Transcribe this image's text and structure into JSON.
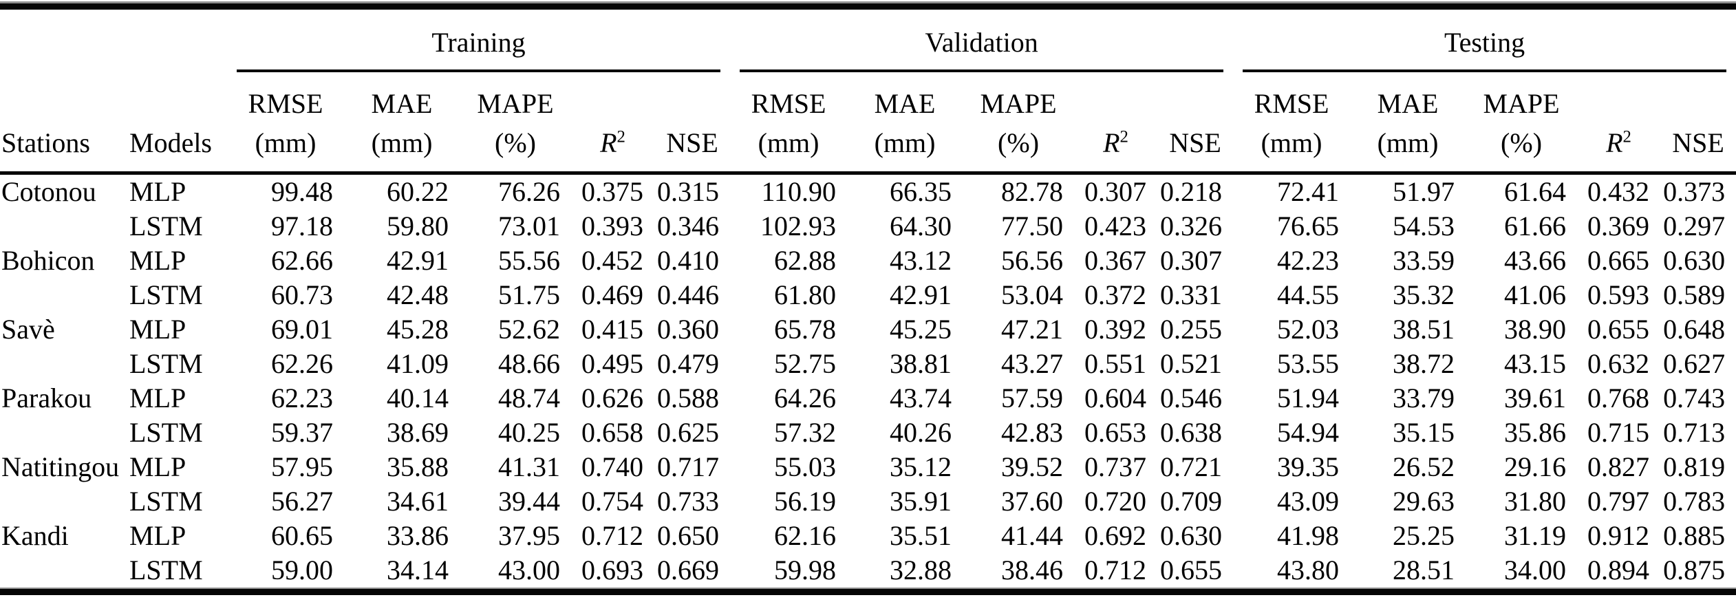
{
  "page": {
    "background": "#ffffff",
    "text_color": "#000000",
    "rule_color": "#050505"
  },
  "table": {
    "left_headers": [
      "Stations",
      "Models"
    ],
    "group_headers": [
      "Training",
      "Validation",
      "Testing"
    ],
    "metric_headers": [
      {
        "name": "rmse",
        "line1": "RMSE",
        "line2": "(mm)"
      },
      {
        "name": "mae",
        "line1": "MAE",
        "line2": "(mm)"
      },
      {
        "name": "mape",
        "line1": "MAPE",
        "line2": "(%)"
      },
      {
        "name": "r2",
        "line1": "R",
        "sup": "2"
      },
      {
        "name": "nse",
        "line1": "NSE"
      }
    ],
    "stations": [
      {
        "name": "Cotonou",
        "models": [
          {
            "name": "MLP",
            "training": [
              "99.48",
              "60.22",
              "76.26",
              "0.375",
              "0.315"
            ],
            "validation": [
              "110.90",
              "66.35",
              "82.78",
              "0.307",
              "0.218"
            ],
            "testing": [
              "72.41",
              "51.97",
              "61.64",
              "0.432",
              "0.373"
            ]
          },
          {
            "name": "LSTM",
            "training": [
              "97.18",
              "59.80",
              "73.01",
              "0.393",
              "0.346"
            ],
            "validation": [
              "102.93",
              "64.30",
              "77.50",
              "0.423",
              "0.326"
            ],
            "testing": [
              "76.65",
              "54.53",
              "61.66",
              "0.369",
              "0.297"
            ]
          }
        ]
      },
      {
        "name": "Bohicon",
        "models": [
          {
            "name": "MLP",
            "training": [
              "62.66",
              "42.91",
              "55.56",
              "0.452",
              "0.410"
            ],
            "validation": [
              "62.88",
              "43.12",
              "56.56",
              "0.367",
              "0.307"
            ],
            "testing": [
              "42.23",
              "33.59",
              "43.66",
              "0.665",
              "0.630"
            ]
          },
          {
            "name": "LSTM",
            "training": [
              "60.73",
              "42.48",
              "51.75",
              "0.469",
              "0.446"
            ],
            "validation": [
              "61.80",
              "42.91",
              "53.04",
              "0.372",
              "0.331"
            ],
            "testing": [
              "44.55",
              "35.32",
              "41.06",
              "0.593",
              "0.589"
            ]
          }
        ]
      },
      {
        "name": "Savè",
        "models": [
          {
            "name": "MLP",
            "training": [
              "69.01",
              "45.28",
              "52.62",
              "0.415",
              "0.360"
            ],
            "validation": [
              "65.78",
              "45.25",
              "47.21",
              "0.392",
              "0.255"
            ],
            "testing": [
              "52.03",
              "38.51",
              "38.90",
              "0.655",
              "0.648"
            ]
          },
          {
            "name": "LSTM",
            "training": [
              "62.26",
              "41.09",
              "48.66",
              "0.495",
              "0.479"
            ],
            "validation": [
              "52.75",
              "38.81",
              "43.27",
              "0.551",
              "0.521"
            ],
            "testing": [
              "53.55",
              "38.72",
              "43.15",
              "0.632",
              "0.627"
            ]
          }
        ]
      },
      {
        "name": "Parakou",
        "models": [
          {
            "name": "MLP",
            "training": [
              "62.23",
              "40.14",
              "48.74",
              "0.626",
              "0.588"
            ],
            "validation": [
              "64.26",
              "43.74",
              "57.59",
              "0.604",
              "0.546"
            ],
            "testing": [
              "51.94",
              "33.79",
              "39.61",
              "0.768",
              "0.743"
            ]
          },
          {
            "name": "LSTM",
            "training": [
              "59.37",
              "38.69",
              "40.25",
              "0.658",
              "0.625"
            ],
            "validation": [
              "57.32",
              "40.26",
              "42.83",
              "0.653",
              "0.638"
            ],
            "testing": [
              "54.94",
              "35.15",
              "35.86",
              "0.715",
              "0.713"
            ]
          }
        ]
      },
      {
        "name": "Natitingou",
        "models": [
          {
            "name": "MLP",
            "training": [
              "57.95",
              "35.88",
              "41.31",
              "0.740",
              "0.717"
            ],
            "validation": [
              "55.03",
              "35.12",
              "39.52",
              "0.737",
              "0.721"
            ],
            "testing": [
              "39.35",
              "26.52",
              "29.16",
              "0.827",
              "0.819"
            ]
          },
          {
            "name": "LSTM",
            "training": [
              "56.27",
              "34.61",
              "39.44",
              "0.754",
              "0.733"
            ],
            "validation": [
              "56.19",
              "35.91",
              "37.60",
              "0.720",
              "0.709"
            ],
            "testing": [
              "43.09",
              "29.63",
              "31.80",
              "0.797",
              "0.783"
            ]
          }
        ]
      },
      {
        "name": "Kandi",
        "models": [
          {
            "name": "MLP",
            "training": [
              "60.65",
              "33.86",
              "37.95",
              "0.712",
              "0.650"
            ],
            "validation": [
              "62.16",
              "35.51",
              "41.44",
              "0.692",
              "0.630"
            ],
            "testing": [
              "41.98",
              "25.25",
              "31.19",
              "0.912",
              "0.885"
            ]
          },
          {
            "name": "LSTM",
            "training": [
              "59.00",
              "34.14",
              "43.00",
              "0.693",
              "0.669"
            ],
            "validation": [
              "59.98",
              "32.88",
              "38.46",
              "0.712",
              "0.655"
            ],
            "testing": [
              "43.80",
              "28.51",
              "34.00",
              "0.894",
              "0.875"
            ]
          }
        ]
      }
    ]
  }
}
